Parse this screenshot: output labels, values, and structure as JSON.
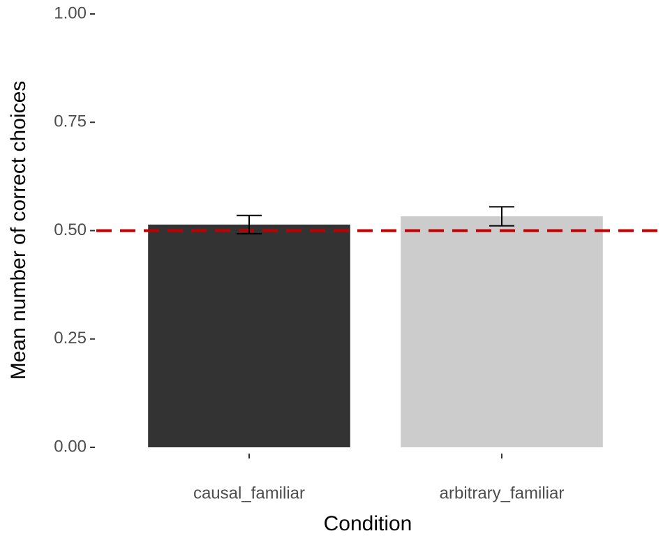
{
  "chart_data": {
    "type": "bar",
    "x_label": "Condition",
    "y_label": "Mean number of correct choices",
    "categories": [
      "causal_familiar",
      "arbitrary_familiar"
    ],
    "values": [
      0.514,
      0.533
    ],
    "errors": [
      0.021,
      0.022
    ],
    "colors": [
      "#333333",
      "#cccccc"
    ],
    "reference_line": {
      "value": 0.5,
      "color": "#c00000"
    },
    "ylim": [
      0,
      1
    ],
    "yticks": [
      {
        "value": 0,
        "label": "0.00"
      },
      {
        "value": 0.25,
        "label": "0.25"
      },
      {
        "value": 0.5,
        "label": "0.50"
      },
      {
        "value": 0.75,
        "label": "0.75"
      },
      {
        "value": 1,
        "label": "1.00"
      }
    ],
    "grid": false
  }
}
